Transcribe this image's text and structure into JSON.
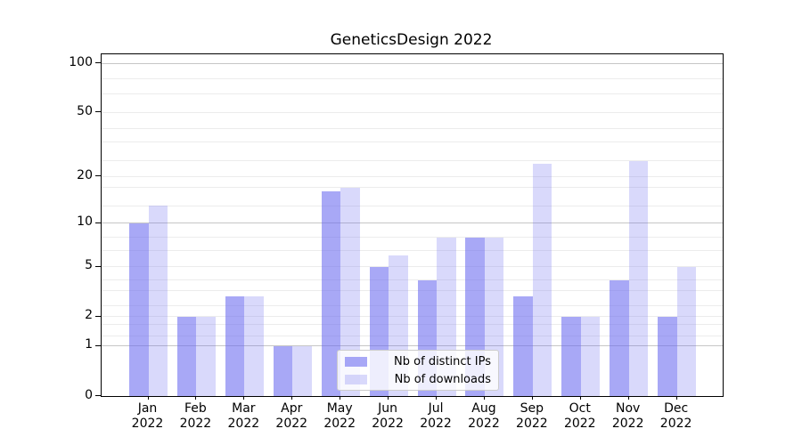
{
  "title": "GeneticsDesign 2022",
  "colors": {
    "bar_base": "#6b6bf0",
    "ips_fill": "rgba(107,107,240,0.59)",
    "downloads_fill": "rgba(107,107,240,0.26)",
    "grid_minor": "#ececec",
    "grid_major": "#c6c6c6",
    "spine": "#000000",
    "legend_border": "#cccccc"
  },
  "legend": {
    "position": "lower center",
    "entries": [
      "Nb of distinct IPs",
      "Nb of downloads"
    ]
  },
  "chart_data": {
    "type": "bar",
    "title": "GeneticsDesign 2022",
    "categories": [
      "Jan",
      "Feb",
      "Mar",
      "Apr",
      "May",
      "Jun",
      "Jul",
      "Aug",
      "Sep",
      "Oct",
      "Nov",
      "Dec"
    ],
    "x_tick_second_line": "2022",
    "series": [
      {
        "name": "Nb of distinct IPs",
        "color": "rgba(107,107,240,0.59)",
        "values": [
          10,
          2,
          3,
          1,
          16,
          5,
          4,
          8,
          3,
          2,
          4,
          2
        ]
      },
      {
        "name": "Nb of downloads",
        "color": "rgba(107,107,240,0.26)",
        "values": [
          13,
          2,
          3,
          1,
          17,
          6,
          8,
          8,
          24,
          2,
          25,
          5
        ]
      }
    ],
    "xlabel": "",
    "ylabel": "",
    "y_ticks": [
      0,
      1,
      2,
      5,
      10,
      20,
      50,
      100
    ],
    "ylim": [
      0,
      101
    ],
    "y_scale": "log1p",
    "grid": "horizontal",
    "gridlines": {
      "major": [
        1,
        10,
        100
      ],
      "minor": [
        1.3,
        1.7,
        2,
        2.5,
        3.3,
        4,
        5,
        6.5,
        8,
        13,
        17,
        20,
        25,
        33,
        40,
        50,
        65,
        80
      ]
    },
    "legend_position": "lower center"
  }
}
